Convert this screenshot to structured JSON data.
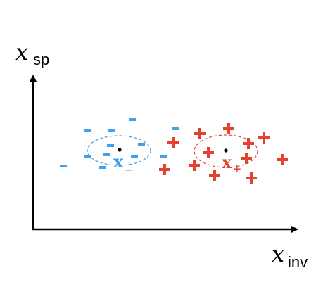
{
  "axes": {
    "y_label": {
      "main": "𝑥",
      "sub": "sp"
    },
    "x_label": {
      "main": "𝑥",
      "sub": "inv"
    }
  },
  "colors": {
    "negative": "#3fa0ec",
    "positive": "#e2422e",
    "axis": "#000000",
    "center_dot": "#000000"
  },
  "groups": {
    "negative": {
      "symbol": "-",
      "center_label": {
        "main": "x",
        "sub": "–"
      }
    },
    "positive": {
      "symbol": "+",
      "center_label": {
        "main": "x",
        "sub": "+"
      }
    }
  }
}
